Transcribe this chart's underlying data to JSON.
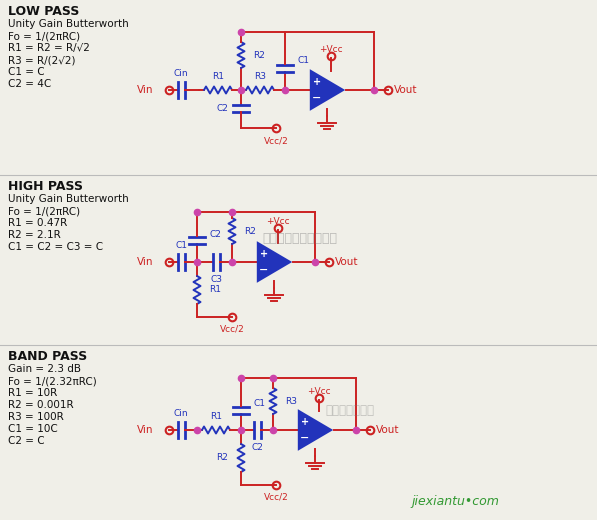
{
  "bg_color": "#f0efe8",
  "blue": "#2233bb",
  "red": "#cc2222",
  "pink": "#cc44aa",
  "dark": "#111111",
  "lw": 1.4,
  "sections": {
    "low_pass": {
      "title": "LOW PASS",
      "lines": [
        "Unity Gain Butterworth",
        "Fo = 1/(2πRC)",
        "R1 = R2 = R/√2",
        "R3 = R/(2√2)",
        "C1 = C",
        "C2 = 4C"
      ]
    },
    "high_pass": {
      "title": "HIGH PASS",
      "lines": [
        "Unity Gain Butterworth",
        "Fo = 1/(2πRC)",
        "R1 = 0.47R",
        "R2 = 2.1R",
        "C1 = C2 = C3 = C"
      ]
    },
    "band_pass": {
      "title": "BAND PASS",
      "lines": [
        "Gain = 2.3 dB",
        "Fo = 1/(2.32πRC)",
        "R1 = 10R",
        "R2 = 0.001R",
        "R3 = 100R",
        "C1 = 10C",
        "C2 = C"
      ]
    }
  },
  "wm1": "杭州将睹科技有限公司",
  "wm2": "维库电子市场网",
  "footer": "jiexiantu•com"
}
